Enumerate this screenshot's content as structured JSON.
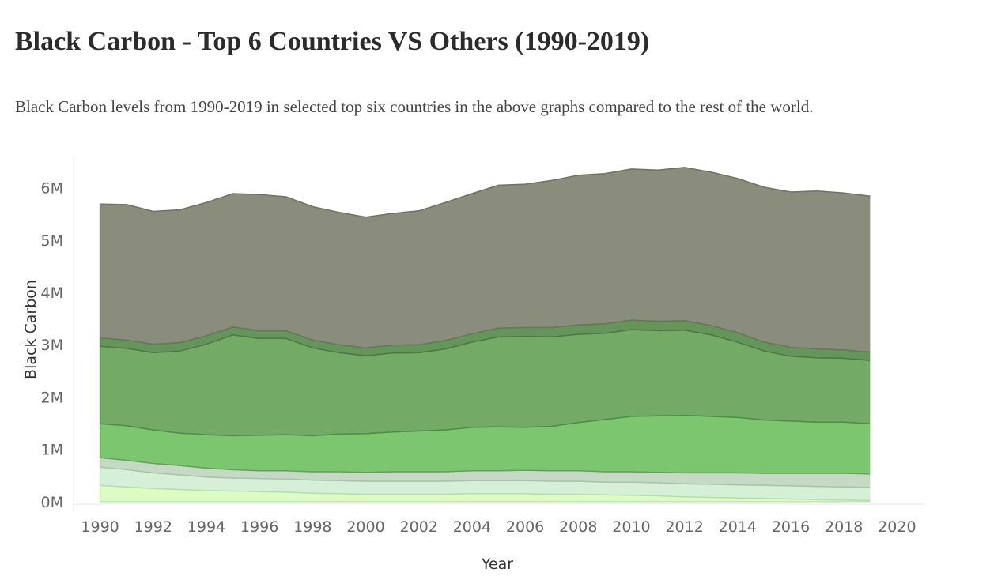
{
  "title": "Black Carbon - Top 6 Countries VS Others (1990-2019)",
  "subtitle": "Black Carbon levels from 1990-2019 in selected top six countries in the above graphs compared to the rest of the world.",
  "chart_data": {
    "type": "area",
    "stacked": true,
    "xlabel": "Year",
    "ylabel": "Black Carbon",
    "xlim": [
      1989,
      2021
    ],
    "ylim": [
      -200000,
      6600000
    ],
    "x_ticks": [
      1990,
      1992,
      1994,
      1996,
      1998,
      2000,
      2002,
      2004,
      2006,
      2008,
      2010,
      2012,
      2014,
      2016,
      2018,
      2020
    ],
    "y_ticks": [
      {
        "value": 0,
        "label": "0M"
      },
      {
        "value": 1000000,
        "label": "1M"
      },
      {
        "value": 2000000,
        "label": "2M"
      },
      {
        "value": 3000000,
        "label": "3M"
      },
      {
        "value": 4000000,
        "label": "4M"
      },
      {
        "value": 5000000,
        "label": "5M"
      },
      {
        "value": 6000000,
        "label": "6M"
      }
    ],
    "grid": false,
    "legend": "none",
    "x": [
      1990,
      1991,
      1992,
      1993,
      1994,
      1995,
      1996,
      1997,
      1998,
      1999,
      2000,
      2001,
      2002,
      2003,
      2004,
      2005,
      2006,
      2007,
      2008,
      2009,
      2010,
      2011,
      2012,
      2013,
      2014,
      2015,
      2016,
      2017,
      2018,
      2019
    ],
    "series": [
      {
        "color": "#dcfcc4",
        "line": "#bfe8a6",
        "values": [
          310000,
          280000,
          250000,
          230000,
          210000,
          200000,
          190000,
          180000,
          160000,
          150000,
          140000,
          140000,
          140000,
          140000,
          150000,
          150000,
          150000,
          140000,
          140000,
          130000,
          120000,
          110000,
          90000,
          80000,
          70000,
          60000,
          50000,
          40000,
          30000,
          20000
        ]
      },
      {
        "color": "#d6f0d8",
        "line": "#b5dcb8",
        "values": [
          350000,
          330000,
          300000,
          280000,
          260000,
          250000,
          250000,
          250000,
          250000,
          250000,
          250000,
          250000,
          250000,
          250000,
          250000,
          250000,
          250000,
          250000,
          250000,
          240000,
          250000,
          250000,
          250000,
          250000,
          250000,
          250000,
          250000,
          250000,
          250000,
          250000
        ]
      },
      {
        "color": "#c5d9c4",
        "line": "#a8c4a6",
        "values": [
          180000,
          180000,
          180000,
          180000,
          170000,
          160000,
          150000,
          160000,
          160000,
          170000,
          170000,
          180000,
          180000,
          180000,
          190000,
          190000,
          200000,
          200000,
          200000,
          200000,
          200000,
          200000,
          210000,
          220000,
          230000,
          230000,
          240000,
          250000,
          260000,
          260000
        ]
      },
      {
        "color": "#7cc66f",
        "line": "#5aa84e",
        "values": [
          650000,
          660000,
          640000,
          620000,
          640000,
          650000,
          680000,
          690000,
          690000,
          720000,
          740000,
          760000,
          780000,
          800000,
          830000,
          840000,
          820000,
          850000,
          920000,
          1000000,
          1060000,
          1080000,
          1100000,
          1080000,
          1060000,
          1020000,
          1000000,
          980000,
          980000,
          960000
        ]
      },
      {
        "color": "#72aa66",
        "line": "#4f8c45",
        "values": [
          1480000,
          1480000,
          1480000,
          1570000,
          1730000,
          1930000,
          1850000,
          1840000,
          1680000,
          1560000,
          1490000,
          1510000,
          1500000,
          1550000,
          1630000,
          1720000,
          1740000,
          1710000,
          1690000,
          1650000,
          1660000,
          1630000,
          1630000,
          1560000,
          1440000,
          1320000,
          1240000,
          1230000,
          1220000,
          1210000
        ]
      },
      {
        "color": "#66955c",
        "line": "#4d7845",
        "values": [
          160000,
          160000,
          160000,
          160000,
          160000,
          150000,
          150000,
          150000,
          150000,
          150000,
          150000,
          150000,
          150000,
          160000,
          160000,
          170000,
          170000,
          180000,
          180000,
          180000,
          180000,
          180000,
          180000,
          180000,
          180000,
          170000,
          170000,
          170000,
          160000,
          160000
        ]
      },
      {
        "color": "#8a8c7c",
        "line": "#6f7163",
        "values": [
          2560000,
          2590000,
          2540000,
          2540000,
          2550000,
          2550000,
          2600000,
          2560000,
          2550000,
          2530000,
          2500000,
          2520000,
          2560000,
          2640000,
          2680000,
          2730000,
          2740000,
          2810000,
          2860000,
          2870000,
          2890000,
          2890000,
          2930000,
          2930000,
          2950000,
          2960000,
          2970000,
          3020000,
          3000000,
          2980000
        ]
      }
    ]
  }
}
